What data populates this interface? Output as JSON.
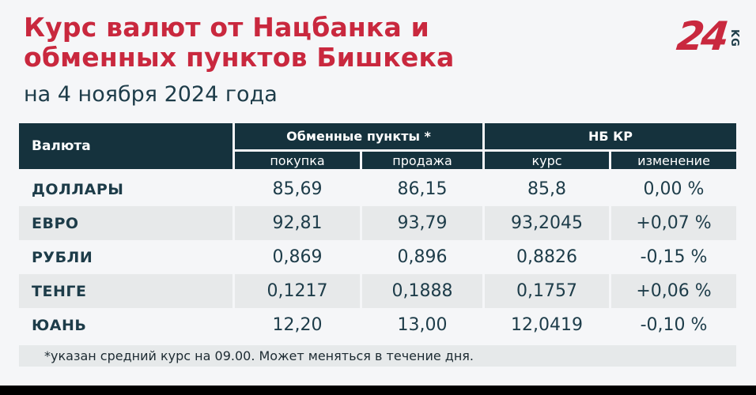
{
  "page": {
    "title": "Курс валют от Нацбанка и\nобменных пунктов Бишкека",
    "subtitle": "на 4 ноября 2024 года",
    "logo": {
      "number": "24",
      "suffix": "KG"
    },
    "colors": {
      "accent_red": "#c9283e",
      "header_bg": "#15323d",
      "text_dark": "#1d3c49",
      "row_alt_bg": "#e7e9ea",
      "page_bg": "#f5f6f8",
      "bottom_bar": "#000000"
    }
  },
  "table": {
    "col_currency": "Валюта",
    "group_exchange": "Обменные пункты *",
    "group_nbkr": "НБ КР",
    "sub_buy": "покупка",
    "sub_sell": "продажа",
    "sub_rate": "курс",
    "sub_change": "изменение",
    "rows": [
      {
        "currency": "ДОЛЛАРЫ",
        "buy": "85,69",
        "sell": "86,15",
        "rate": "85,8",
        "change": "0,00 %"
      },
      {
        "currency": "ЕВРО",
        "buy": "92,81",
        "sell": "93,79",
        "rate": "93,2045",
        "change": "+0,07 %"
      },
      {
        "currency": "РУБЛИ",
        "buy": "0,869",
        "sell": "0,896",
        "rate": "0,8826",
        "change": "-0,15 %"
      },
      {
        "currency": "ТЕНГЕ",
        "buy": "0,1217",
        "sell": "0,1888",
        "rate": "0,1757",
        "change": "+0,06 %"
      },
      {
        "currency": "ЮАНЬ",
        "buy": "12,20",
        "sell": "13,00",
        "rate": "12,0419",
        "change": "-0,10 %"
      }
    ],
    "footnote": "*указан средний курс на 09.00. Может меняться в течение дня."
  },
  "chart_data": {
    "type": "table",
    "title": "Курс валют от Нацбанка и обменных пунктов Бишкека",
    "subtitle": "на 4 ноября 2024 года",
    "column_groups": [
      {
        "label": "Обменные пункты *",
        "columns": [
          "покупка",
          "продажа"
        ]
      },
      {
        "label": "НБ КР",
        "columns": [
          "курс",
          "изменение"
        ]
      }
    ],
    "columns": [
      "Валюта",
      "покупка",
      "продажа",
      "курс",
      "изменение"
    ],
    "rows": [
      [
        "ДОЛЛАРЫ",
        "85,69",
        "86,15",
        "85,8",
        "0,00 %"
      ],
      [
        "ЕВРО",
        "92,81",
        "93,79",
        "93,2045",
        "+0,07 %"
      ],
      [
        "РУБЛИ",
        "0,869",
        "0,896",
        "0,8826",
        "-0,15 %"
      ],
      [
        "ТЕНГЕ",
        "0,1217",
        "0,1888",
        "0,1757",
        "+0,06 %"
      ],
      [
        "ЮАНЬ",
        "12,20",
        "13,00",
        "12,0419",
        "-0,10 %"
      ]
    ],
    "footnote": "*указан средний курс на 09.00. Может меняться в течение дня."
  }
}
